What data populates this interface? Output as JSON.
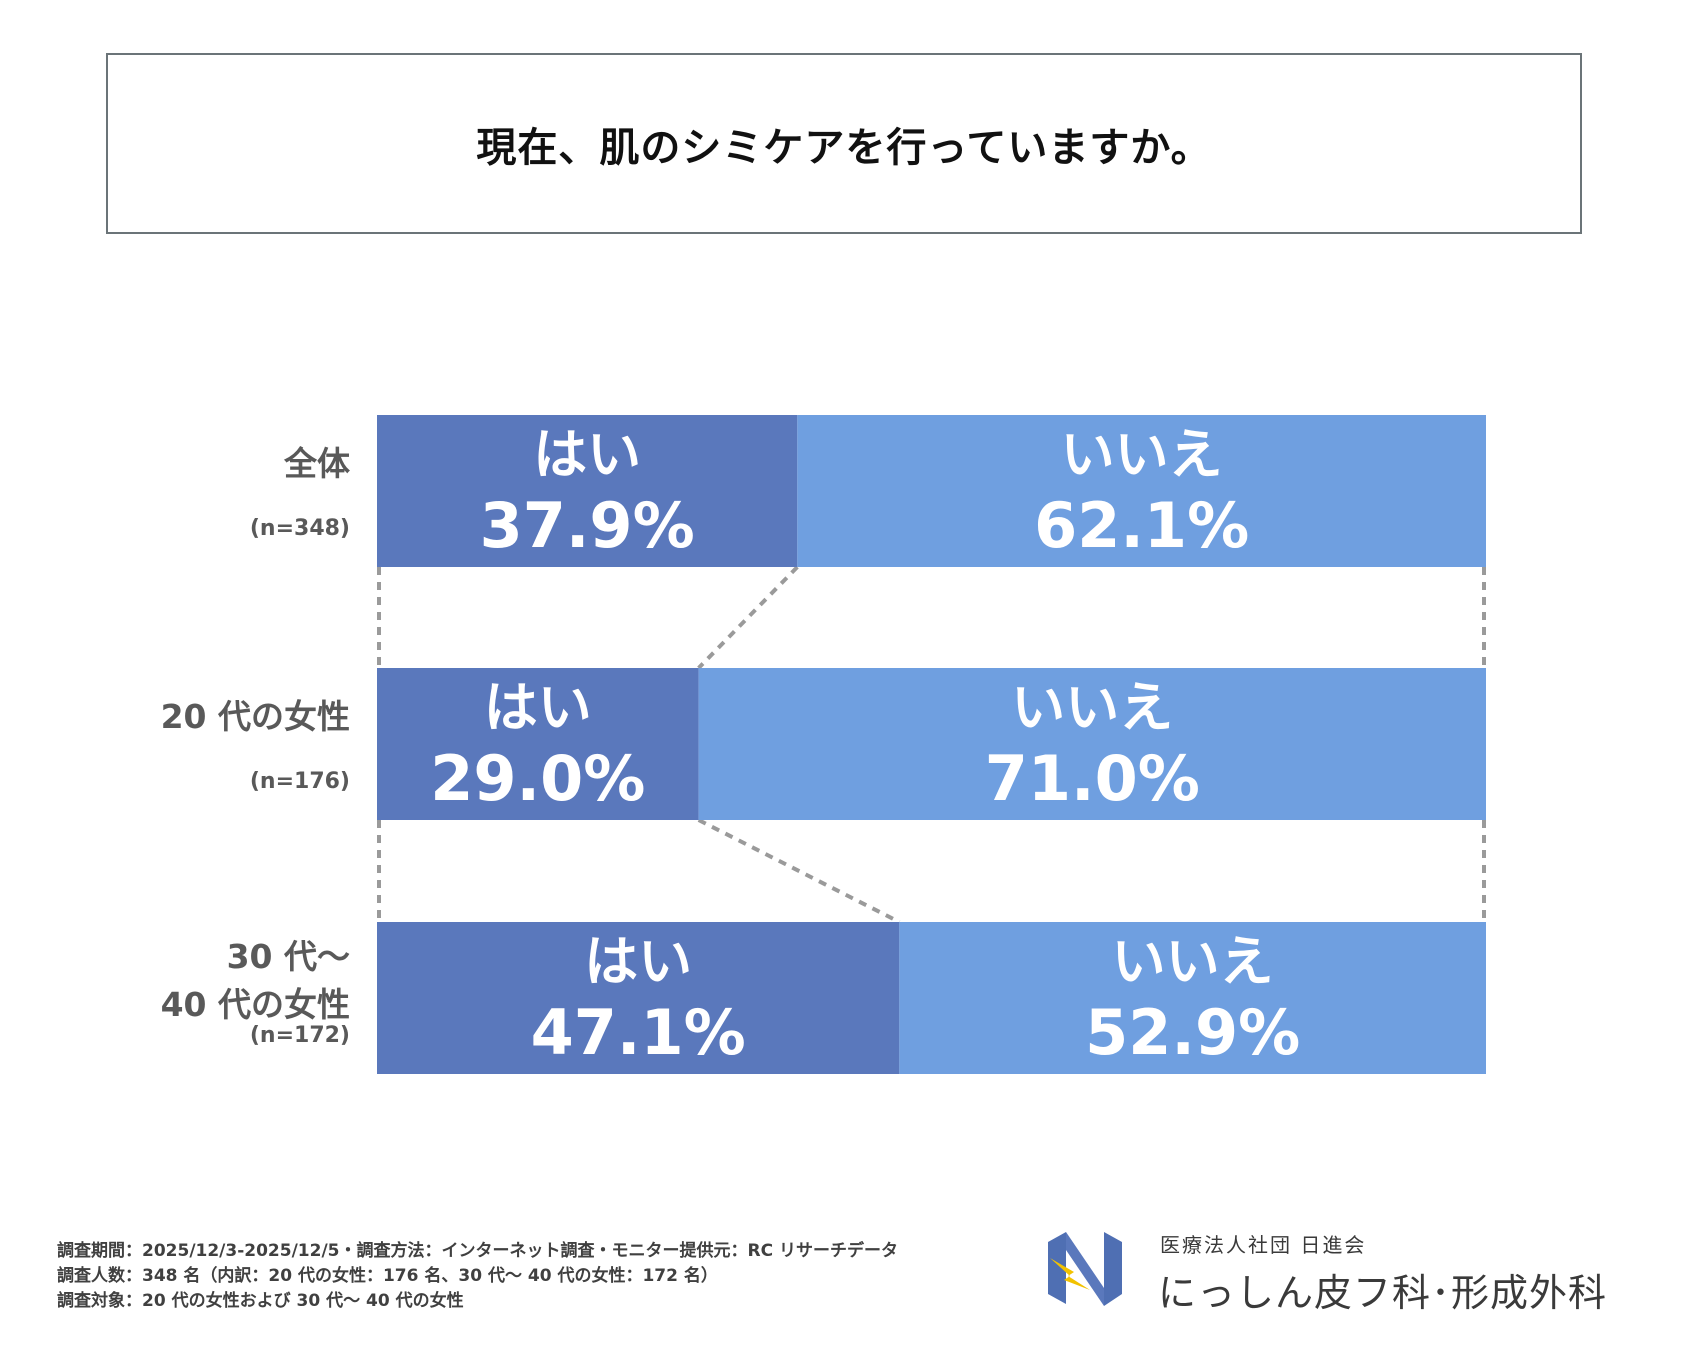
{
  "title": "現在、肌のシミケアを行っていますか。",
  "colors": {
    "yes": "#5a78bc",
    "no": "#6f9fe0",
    "connector": "#9a9a9a",
    "label": "#595959"
  },
  "chart_data": {
    "type": "bar",
    "orientation": "horizontal-stacked-100",
    "title": "現在、肌のシミケアを行っていますか。",
    "xlim": [
      0,
      100
    ],
    "categories": [
      {
        "label_lines": [
          "全体"
        ],
        "n": "(n=348)"
      },
      {
        "label_lines": [
          "20 代の女性"
        ],
        "n": "(n=176)"
      },
      {
        "label_lines": [
          "30 代〜",
          "40 代の女性"
        ],
        "n": "(n=172)"
      }
    ],
    "series": [
      {
        "name": "はい",
        "values": [
          37.9,
          29.0,
          47.1
        ],
        "labels": [
          "37.9%",
          "29.0%",
          "47.1%"
        ]
      },
      {
        "name": "いいえ",
        "values": [
          62.1,
          71.0,
          52.9
        ],
        "labels": [
          "62.1%",
          "71.0%",
          "52.9%"
        ]
      }
    ]
  },
  "footer": {
    "line1": "調査期間：2025/12/3-2025/12/5・調査方法：インターネット調査・モニター提供元：RC リサーチデータ",
    "line2": "調査人数：348 名（内訳：20 代の女性：176 名、30 代〜 40 代の女性：172 名）",
    "line3": "調査対象：20 代の女性および 30 代〜 40 代の女性"
  },
  "logo": {
    "org": "医療法人社団 日進会",
    "clinic": "にっしん皮フ科･形成外科"
  }
}
